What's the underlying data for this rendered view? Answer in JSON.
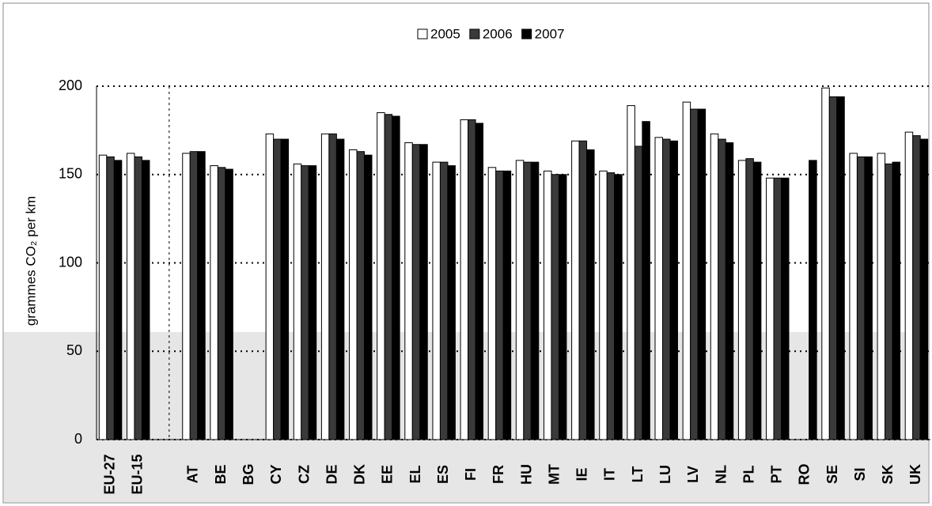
{
  "chart_data": {
    "type": "bar",
    "y_label": "grammes CO₂ per km",
    "categories": [
      "EU-27",
      "EU-15",
      null,
      "AT",
      "BE",
      "BG",
      "CY",
      "CZ",
      "DE",
      "DK",
      "EE",
      "EL",
      "ES",
      "FI",
      "FR",
      "HU",
      "MT",
      "IE",
      "IT",
      "LT",
      "LU",
      "LV",
      "NL",
      "PL",
      "PT",
      "RO",
      "SE",
      "SI",
      "SK",
      "UK"
    ],
    "series": [
      {
        "name": "2005",
        "color": "#ffffff",
        "values": [
          161,
          162,
          null,
          162,
          155,
          null,
          173,
          156,
          173,
          164,
          185,
          168,
          157,
          181,
          154,
          158,
          152,
          169,
          152,
          189,
          171,
          191,
          173,
          158,
          148,
          null,
          199,
          162,
          162,
          174
        ]
      },
      {
        "name": "2006",
        "color": "#3a3a3a",
        "values": [
          160,
          160,
          null,
          163,
          154,
          null,
          170,
          155,
          173,
          163,
          184,
          167,
          157,
          181,
          152,
          157,
          150,
          169,
          151,
          166,
          170,
          187,
          170,
          159,
          148,
          null,
          194,
          160,
          156,
          172
        ]
      },
      {
        "name": "2007",
        "color": "#000000",
        "values": [
          158,
          158,
          null,
          163,
          153,
          null,
          170,
          155,
          170,
          161,
          183,
          167,
          155,
          179,
          152,
          157,
          150,
          164,
          150,
          180,
          169,
          187,
          168,
          157,
          148,
          158,
          194,
          160,
          157,
          170
        ]
      }
    ],
    "ylim": [
      0,
      200
    ],
    "yticks": [
      0,
      50,
      100,
      150,
      200
    ],
    "grid": true
  }
}
